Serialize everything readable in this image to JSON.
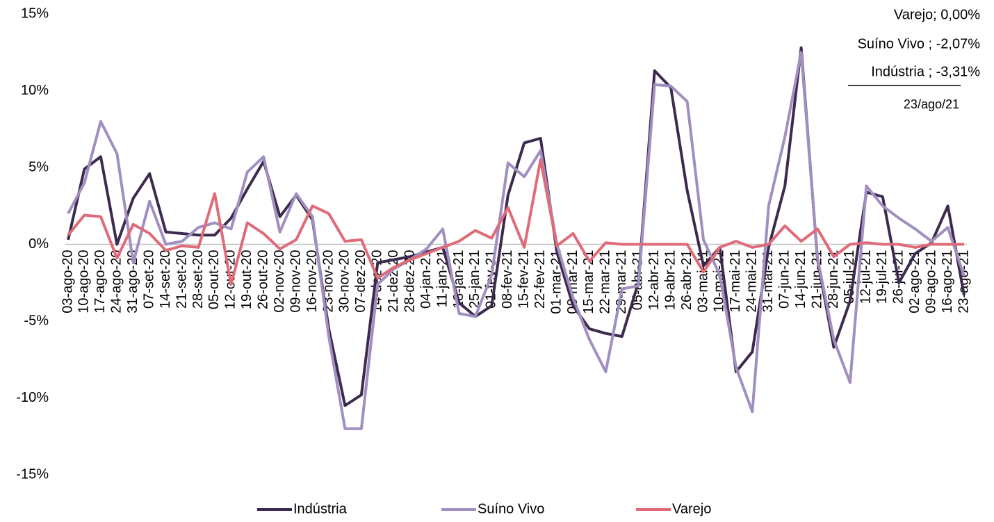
{
  "chart_data": {
    "type": "line",
    "categories": [
      "03-ago-20",
      "10-ago-20",
      "17-ago-20",
      "24-ago-20",
      "31-ago-20",
      "07-set-20",
      "14-set-20",
      "21-set-20",
      "28-set-20",
      "05-out-20",
      "12-out-20",
      "19-out-20",
      "26-out-20",
      "02-nov-20",
      "09-nov-20",
      "16-nov-20",
      "23-nov-20",
      "30-nov-20",
      "07-dez-20",
      "14-dez-20",
      "21-dez-20",
      "28-dez-20",
      "04-jan-21",
      "11-jan-21",
      "18-jan-21",
      "25-jan-21",
      "01-fev-21",
      "08-fev-21",
      "15-fev-21",
      "22-fev-21",
      "01-mar-21",
      "08-mar-21",
      "15-mar-21",
      "22-mar-21",
      "29-mar-21",
      "05-abr-21",
      "12-abr-21",
      "19-abr-21",
      "26-abr-21",
      "03-mai-21",
      "10-mai-21",
      "17-mai-21",
      "24-mai-21",
      "31-mai-21",
      "07-jun-21",
      "14-jun-21",
      "21-jun-21",
      "28-jun-21",
      "05-jul-21",
      "12-jul-21",
      "19-jul-21",
      "26-jul-21",
      "02-ago-21",
      "09-ago-21",
      "16-ago-21",
      "23-ago-21"
    ],
    "series": [
      {
        "name": "Indústria",
        "color": "#3d2b4f",
        "values": [
          0.3,
          4.9,
          5.7,
          0.0,
          3.0,
          4.6,
          0.8,
          0.7,
          0.6,
          0.6,
          1.7,
          3.6,
          5.4,
          1.8,
          3.2,
          1.6,
          -5.5,
          -10.5,
          -9.8,
          -1.2,
          -1.0,
          -0.8,
          -0.5,
          -0.2,
          -3.8,
          -4.7,
          -4.0,
          3.2,
          6.6,
          6.9,
          -0.5,
          -4.0,
          -5.5,
          -5.8,
          -6.0,
          -2.5,
          11.3,
          10.2,
          3.5,
          -1.4,
          -0.2,
          -8.3,
          -7.0,
          -0.2,
          3.8,
          12.8,
          -1.0,
          -6.7,
          -3.7,
          3.4,
          3.1,
          -2.5,
          -0.6,
          0.1,
          2.5,
          -3.31
        ]
      },
      {
        "name": "Suíno Vivo",
        "color": "#a08fc0",
        "values": [
          2.0,
          4.0,
          8.0,
          5.9,
          -1.2,
          2.8,
          0.0,
          0.2,
          1.1,
          1.4,
          1.0,
          4.7,
          5.7,
          0.8,
          3.3,
          1.8,
          -6.0,
          -12.0,
          -12.0,
          -2.6,
          -1.6,
          -1.0,
          -0.3,
          1.0,
          -4.5,
          -4.7,
          -2.0,
          5.3,
          4.4,
          6.1,
          0.0,
          -3.5,
          -6.2,
          -8.3,
          -2.9,
          -2.7,
          10.4,
          10.3,
          9.3,
          0.3,
          -2.0,
          -8.0,
          -10.9,
          2.5,
          7.0,
          12.5,
          -0.9,
          -6.2,
          -9.0,
          3.8,
          2.5,
          1.7,
          1.0,
          0.2,
          1.1,
          -2.07
        ]
      },
      {
        "name": "Varejo",
        "color": "#e06b78",
        "values": [
          0.6,
          1.9,
          1.8,
          -0.9,
          1.3,
          0.7,
          -0.4,
          -0.1,
          -0.2,
          3.3,
          -2.6,
          1.4,
          0.7,
          -0.3,
          0.3,
          2.5,
          2.0,
          0.2,
          0.3,
          -2.2,
          -1.5,
          -1.0,
          -0.6,
          -0.2,
          0.2,
          0.9,
          0.4,
          2.4,
          -0.2,
          5.5,
          -0.1,
          0.7,
          -1.1,
          0.1,
          0.0,
          0.0,
          0.0,
          0.0,
          0.0,
          -1.8,
          -0.2,
          0.2,
          -0.2,
          0.0,
          1.2,
          0.2,
          1.0,
          -0.8,
          0.0,
          0.1,
          0.0,
          0.0,
          -0.2,
          0.0,
          0.0,
          0.0
        ]
      }
    ],
    "ylim": [
      -15,
      15
    ],
    "yticks": [
      {
        "value": -15,
        "label": "-15%"
      },
      {
        "value": -10,
        "label": "-10%"
      },
      {
        "value": -5,
        "label": "-5%"
      },
      {
        "value": 0,
        "label": "0%"
      },
      {
        "value": 5,
        "label": "5%"
      },
      {
        "value": 10,
        "label": "10%"
      },
      {
        "value": 15,
        "label": "15%"
      }
    ],
    "annotations": [
      "Varejo; 0,00%",
      "Suíno Vivo ; -2,07%",
      "Indústria ; -3,31%",
      "23/ago/21"
    ],
    "legend": "bottom",
    "grid": false
  }
}
